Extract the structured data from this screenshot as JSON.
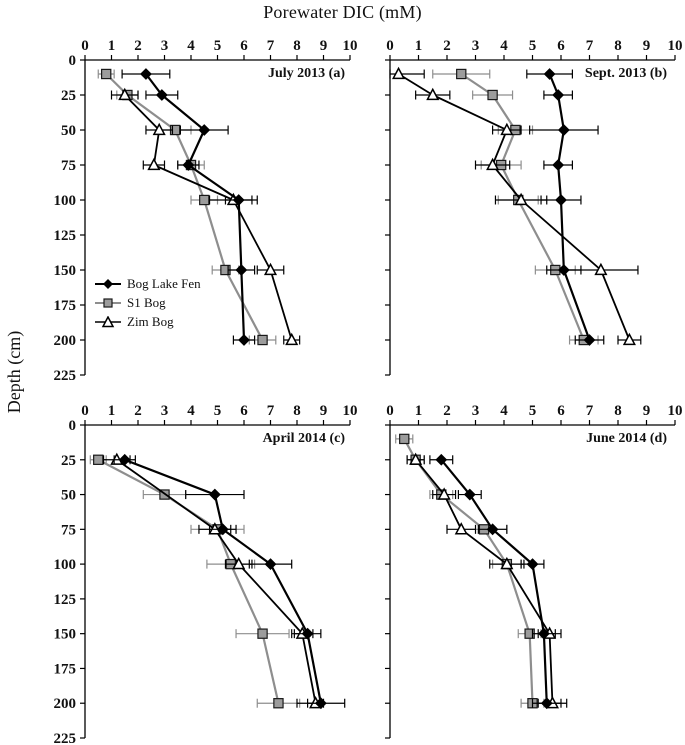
{
  "figure": {
    "title": "Porewater DIC (mM)",
    "y_axis_label": "Depth (cm)"
  },
  "legend": {
    "items": [
      {
        "label": "Bog Lake Fen",
        "marker": "diamond-filled-black"
      },
      {
        "label": "S1 Bog",
        "marker": "square-filled-gray"
      },
      {
        "label": "Zim Bog",
        "marker": "triangle-open-white"
      }
    ]
  },
  "axes": {
    "xlim": [
      0,
      10
    ],
    "ylim": [
      0,
      225
    ],
    "xticks": [
      0,
      1,
      2,
      3,
      4,
      5,
      6,
      7,
      8,
      9,
      10
    ],
    "yticks": [
      0,
      25,
      50,
      75,
      100,
      125,
      150,
      175,
      200,
      225
    ]
  },
  "series_styles": [
    {
      "name": "Bog Lake Fen",
      "marker": "diamond",
      "line_color": "#000000",
      "marker_fill": "#000000",
      "marker_stroke": "#000000",
      "line_width": 2.2,
      "zorder": 3
    },
    {
      "name": "S1 Bog",
      "marker": "square",
      "line_color": "#8e8e8e",
      "marker_fill": "#9c9c9c",
      "marker_stroke": "#1a1a1a",
      "line_width": 2.2,
      "zorder": 1
    },
    {
      "name": "Zim Bog",
      "marker": "triangle",
      "line_color": "#000000",
      "marker_fill": "#ffffff",
      "marker_stroke": "#000000",
      "line_width": 1.8,
      "zorder": 2
    }
  ],
  "chart_data": [
    {
      "type": "line",
      "title": "July 2013",
      "panel_label": "(a)",
      "xlabel": "Porewater DIC (mM)",
      "ylabel": "Depth (cm)",
      "series": [
        {
          "name": "Bog Lake Fen",
          "points": [
            {
              "depth": 10,
              "dic": 2.3,
              "err": 0.9
            },
            {
              "depth": 25,
              "dic": 2.9,
              "err": 0.6
            },
            {
              "depth": 50,
              "dic": 4.5,
              "err": 0.9
            },
            {
              "depth": 75,
              "dic": 3.9,
              "err": 0.4
            },
            {
              "depth": 100,
              "dic": 5.8,
              "err": 0.5
            },
            {
              "depth": 150,
              "dic": 5.9,
              "err": 0.5
            },
            {
              "depth": 200,
              "dic": 6.0,
              "err": 0.4
            }
          ]
        },
        {
          "name": "S1 Bog",
          "points": [
            {
              "depth": 10,
              "dic": 0.8,
              "err": 0.3
            },
            {
              "depth": 25,
              "dic": 1.6,
              "err": 0.4
            },
            {
              "depth": 50,
              "dic": 3.4,
              "err": 0.6
            },
            {
              "depth": 75,
              "dic": 4.0,
              "err": 0.5
            },
            {
              "depth": 100,
              "dic": 4.5,
              "err": 0.5
            },
            {
              "depth": 150,
              "dic": 5.3,
              "err": 0.5
            },
            {
              "depth": 200,
              "dic": 6.7,
              "err": 0.5
            }
          ]
        },
        {
          "name": "Zim Bog",
          "points": [
            {
              "depth": 25,
              "dic": 1.5,
              "err": 0.5
            },
            {
              "depth": 50,
              "dic": 2.8,
              "err": 0.5
            },
            {
              "depth": 75,
              "dic": 2.6,
              "err": 0.4
            },
            {
              "depth": 100,
              "dic": 5.6,
              "err": 0.9
            },
            {
              "depth": 150,
              "dic": 7.0,
              "err": 0.5
            },
            {
              "depth": 200,
              "dic": 7.8,
              "err": 0.3
            }
          ]
        }
      ]
    },
    {
      "type": "line",
      "title": "Sept. 2013",
      "panel_label": "(b)",
      "xlabel": "Porewater DIC (mM)",
      "ylabel": "Depth (cm)",
      "series": [
        {
          "name": "Bog Lake Fen",
          "points": [
            {
              "depth": 10,
              "dic": 5.6,
              "err": 0.8
            },
            {
              "depth": 25,
              "dic": 5.9,
              "err": 0.5
            },
            {
              "depth": 50,
              "dic": 6.1,
              "err": 1.2
            },
            {
              "depth": 75,
              "dic": 5.9,
              "err": 0.5
            },
            {
              "depth": 100,
              "dic": 6.0,
              "err": 0.7
            },
            {
              "depth": 150,
              "dic": 6.1,
              "err": 0.6
            },
            {
              "depth": 200,
              "dic": 7.0,
              "err": 0.5
            }
          ]
        },
        {
          "name": "S1 Bog",
          "points": [
            {
              "depth": 10,
              "dic": 2.5,
              "err": 1.0
            },
            {
              "depth": 25,
              "dic": 3.6,
              "err": 0.7
            },
            {
              "depth": 50,
              "dic": 4.4,
              "err": 0.6
            },
            {
              "depth": 75,
              "dic": 3.9,
              "err": 0.7
            },
            {
              "depth": 100,
              "dic": 4.5,
              "err": 0.7
            },
            {
              "depth": 150,
              "dic": 5.8,
              "err": 0.7
            },
            {
              "depth": 200,
              "dic": 6.8,
              "err": 0.5
            }
          ]
        },
        {
          "name": "Zim Bog",
          "points": [
            {
              "depth": 10,
              "dic": 0.3,
              "err": 0.9
            },
            {
              "depth": 25,
              "dic": 1.5,
              "err": 0.6
            },
            {
              "depth": 50,
              "dic": 4.1,
              "err": 0.5
            },
            {
              "depth": 75,
              "dic": 3.6,
              "err": 0.6
            },
            {
              "depth": 100,
              "dic": 4.6,
              "err": 0.9
            },
            {
              "depth": 150,
              "dic": 7.4,
              "err": 1.3
            },
            {
              "depth": 200,
              "dic": 8.4,
              "err": 0.4
            }
          ]
        }
      ]
    },
    {
      "type": "line",
      "title": "April 2014",
      "panel_label": "(c)",
      "xlabel": "Porewater DIC (mM)",
      "ylabel": "Depth (cm)",
      "series": [
        {
          "name": "Bog Lake Fen",
          "points": [
            {
              "depth": 25,
              "dic": 1.5,
              "err": 0.4
            },
            {
              "depth": 50,
              "dic": 4.9,
              "err": 1.1
            },
            {
              "depth": 75,
              "dic": 5.2,
              "err": 0.5
            },
            {
              "depth": 100,
              "dic": 7.0,
              "err": 0.8
            },
            {
              "depth": 150,
              "dic": 8.4,
              "err": 0.5
            },
            {
              "depth": 200,
              "dic": 8.9,
              "err": 0.9
            }
          ]
        },
        {
          "name": "S1 Bog",
          "points": [
            {
              "depth": 25,
              "dic": 0.5,
              "err": 0.3
            },
            {
              "depth": 50,
              "dic": 3.0,
              "err": 0.8
            },
            {
              "depth": 75,
              "dic": 5.0,
              "err": 1.0
            },
            {
              "depth": 100,
              "dic": 5.5,
              "err": 0.9
            },
            {
              "depth": 150,
              "dic": 6.7,
              "err": 1.0
            },
            {
              "depth": 200,
              "dic": 7.3,
              "err": 0.8
            }
          ]
        },
        {
          "name": "Zim Bog",
          "points": [
            {
              "depth": 25,
              "dic": 1.2,
              "err": 0.5
            },
            {
              "depth": 75,
              "dic": 4.9,
              "err": 0.6
            },
            {
              "depth": 100,
              "dic": 5.8,
              "err": 0.5
            },
            {
              "depth": 150,
              "dic": 8.2,
              "err": 0.4
            },
            {
              "depth": 200,
              "dic": 8.7,
              "err": 0.3
            }
          ]
        }
      ]
    },
    {
      "type": "line",
      "title": "June 2014",
      "panel_label": "(d)",
      "xlabel": "Porewater DIC (mM)",
      "ylabel": "Depth (cm)",
      "series": [
        {
          "name": "Bog Lake Fen",
          "points": [
            {
              "depth": 25,
              "dic": 1.8,
              "err": 0.4
            },
            {
              "depth": 50,
              "dic": 2.8,
              "err": 0.4
            },
            {
              "depth": 75,
              "dic": 3.6,
              "err": 0.5
            },
            {
              "depth": 100,
              "dic": 5.0,
              "err": 0.4
            },
            {
              "depth": 150,
              "dic": 5.4,
              "err": 0.4
            },
            {
              "depth": 200,
              "dic": 5.5,
              "err": 0.5
            }
          ]
        },
        {
          "name": "S1 Bog",
          "points": [
            {
              "depth": 10,
              "dic": 0.5,
              "err": 0.3
            },
            {
              "depth": 25,
              "dic": 0.9,
              "err": 0.3
            },
            {
              "depth": 50,
              "dic": 1.8,
              "err": 0.4
            },
            {
              "depth": 75,
              "dic": 3.3,
              "err": 0.8
            },
            {
              "depth": 100,
              "dic": 4.1,
              "err": 0.5
            },
            {
              "depth": 150,
              "dic": 4.9,
              "err": 0.4
            },
            {
              "depth": 200,
              "dic": 5.0,
              "err": 0.4
            }
          ]
        },
        {
          "name": "Zim Bog",
          "points": [
            {
              "depth": 25,
              "dic": 0.9,
              "err": 0.3
            },
            {
              "depth": 50,
              "dic": 1.9,
              "err": 0.4
            },
            {
              "depth": 75,
              "dic": 2.5,
              "err": 0.5
            },
            {
              "depth": 100,
              "dic": 4.1,
              "err": 0.6
            },
            {
              "depth": 150,
              "dic": 5.6,
              "err": 0.4
            },
            {
              "depth": 200,
              "dic": 5.7,
              "err": 0.5
            }
          ]
        }
      ]
    }
  ]
}
